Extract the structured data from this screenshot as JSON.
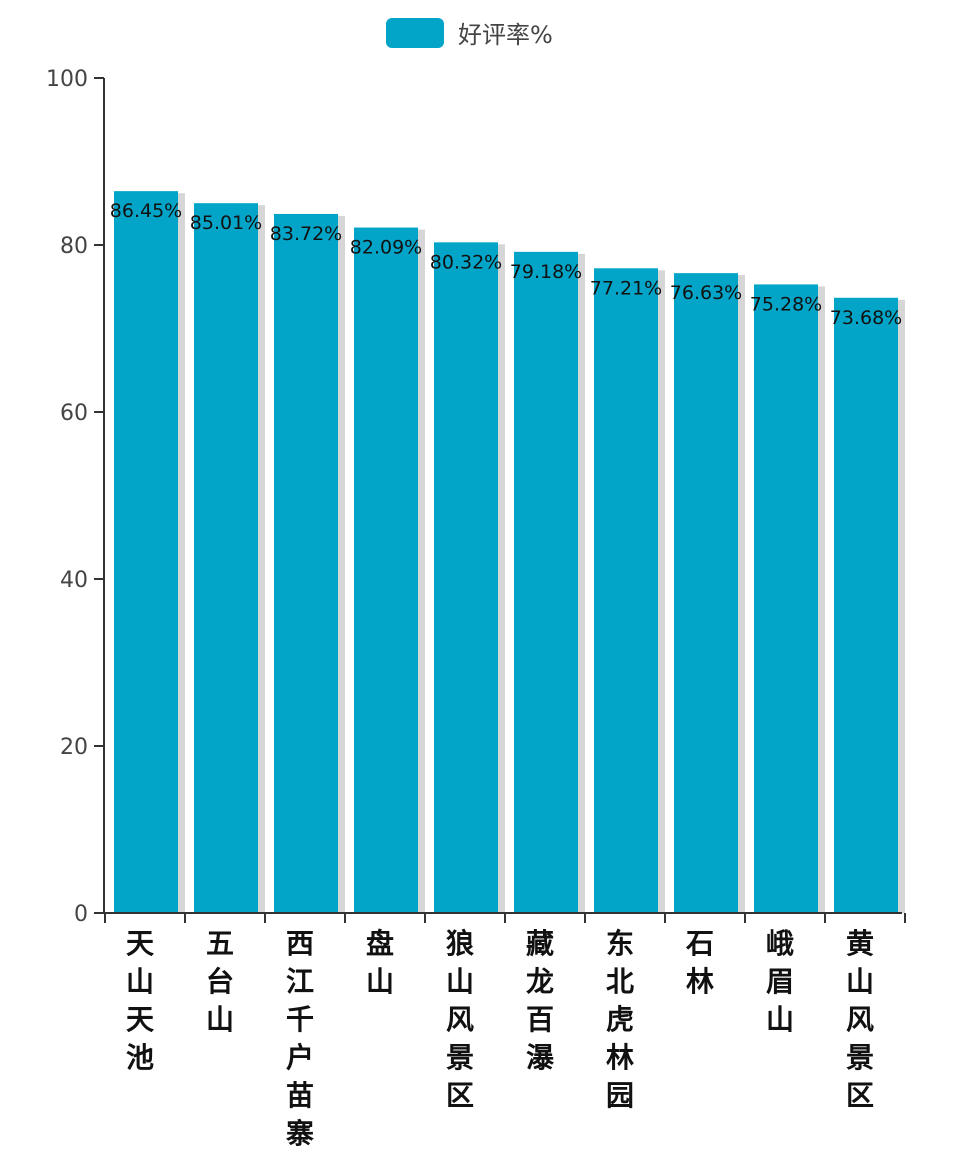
{
  "chart_data": {
    "type": "bar",
    "categories": [
      "天山天池",
      "五台山",
      "西江千户苗寨",
      "盘山",
      "狼山风景区",
      "藏龙百瀑",
      "东北虎林园",
      "石林",
      "峨眉山",
      "黄山风景区"
    ],
    "series": [
      {
        "name": "好评率%",
        "values": [
          86.45,
          85.01,
          83.72,
          82.09,
          80.32,
          79.18,
          77.21,
          76.63,
          75.28,
          73.68
        ],
        "data_labels": [
          "86.45%",
          "85.01%",
          "83.72%",
          "82.09%",
          "80.32%",
          "79.18%",
          "77.21%",
          "76.63%",
          "75.28%",
          "73.68%"
        ]
      }
    ],
    "y_ticks": [
      "0",
      "20",
      "40",
      "60",
      "80",
      "100"
    ],
    "ylim": [
      0,
      100
    ],
    "legend_position": "top-center",
    "grid": false,
    "colors": {
      "bar": "#02a5c7",
      "bar_shadow": "#d6d6d6",
      "axis": "#333333"
    }
  }
}
